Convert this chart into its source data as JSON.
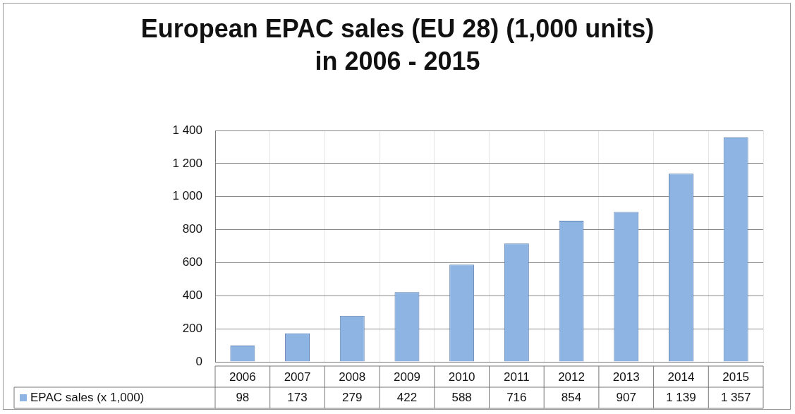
{
  "chart_data": {
    "type": "bar",
    "title": "European EPAC sales (EU 28) (1,000 units) in 2006 - 2015",
    "categories": [
      "2006",
      "2007",
      "2008",
      "2009",
      "2010",
      "2011",
      "2012",
      "2013",
      "2014",
      "2015"
    ],
    "series": [
      {
        "name": "EPAC sales (x 1,000)",
        "color": "#8eb4e3",
        "values": [
          98,
          173,
          279,
          422,
          588,
          716,
          854,
          907,
          1139,
          1357
        ],
        "value_labels": [
          "98",
          "173",
          "279",
          "422",
          "588",
          "716",
          "854",
          "907",
          "1 139",
          "1 357"
        ]
      }
    ],
    "ylim": [
      0,
      1400
    ],
    "yticks": [
      0,
      {
        "value": 200,
        "label": "200"
      },
      {
        "value": 400,
        "label": "400"
      },
      {
        "value": 600,
        "label": "600"
      },
      {
        "value": 800,
        "label": "800"
      },
      {
        "value": 1000,
        "label": "1 000"
      },
      {
        "value": 1200,
        "label": "1 200"
      },
      {
        "value": 1400,
        "label": "1 400"
      }
    ],
    "grid": true,
    "legend": "bottom left"
  }
}
